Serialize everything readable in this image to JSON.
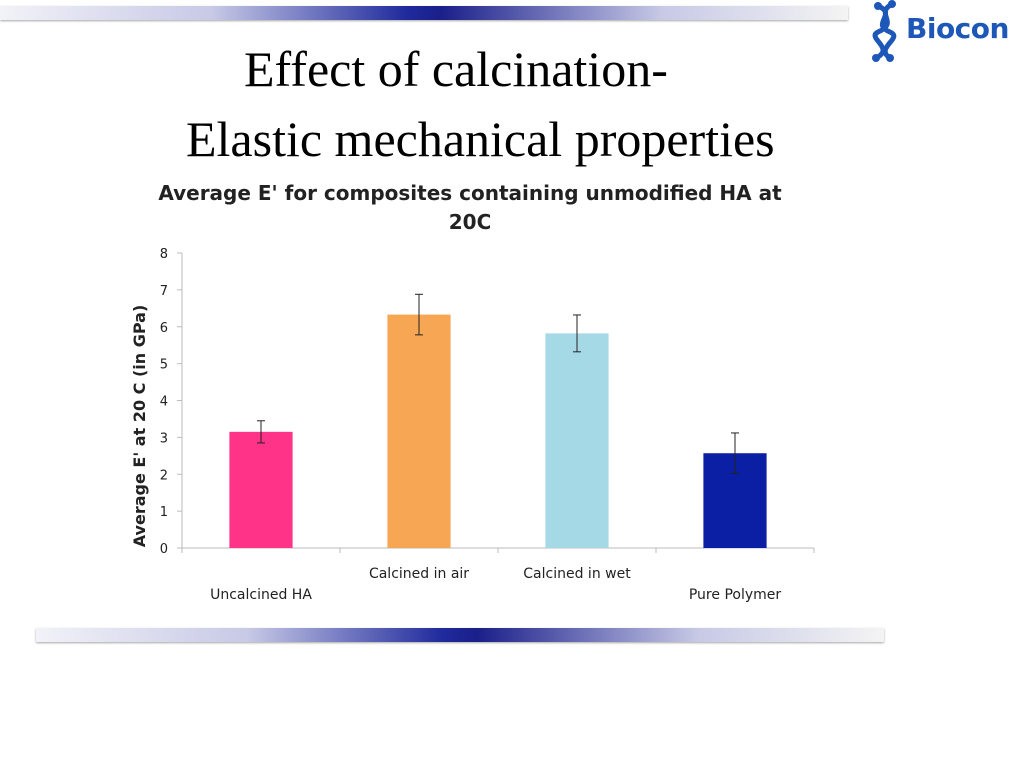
{
  "slide": {
    "title_line1": "Effect of calcination-",
    "title_line2": "Elastic mechanical properties",
    "logo_text": "Biocon",
    "logo_color": "#1d57b8",
    "band_accent": "#1a1f8a"
  },
  "chart_data": {
    "type": "bar",
    "title_line1": "Average E' for composites containing unmodified HA at",
    "title_line2": "20C",
    "ylabel": "Average E' at 20 C (in GPa)",
    "xlabel": "",
    "ylim": [
      0,
      8
    ],
    "yticks": [
      0,
      1,
      2,
      3,
      4,
      5,
      6,
      7,
      8
    ],
    "grid": false,
    "legend": "none",
    "categories": [
      "Uncalcined HA",
      "Calcined in air",
      "Calcined in wet",
      "Pure Polymer"
    ],
    "values": [
      3.15,
      6.33,
      5.82,
      2.57
    ],
    "errors": [
      0.3,
      0.55,
      0.5,
      0.55
    ],
    "colors": [
      "#ff3388",
      "#f7a654",
      "#a6d9e6",
      "#0a1fa3"
    ]
  }
}
